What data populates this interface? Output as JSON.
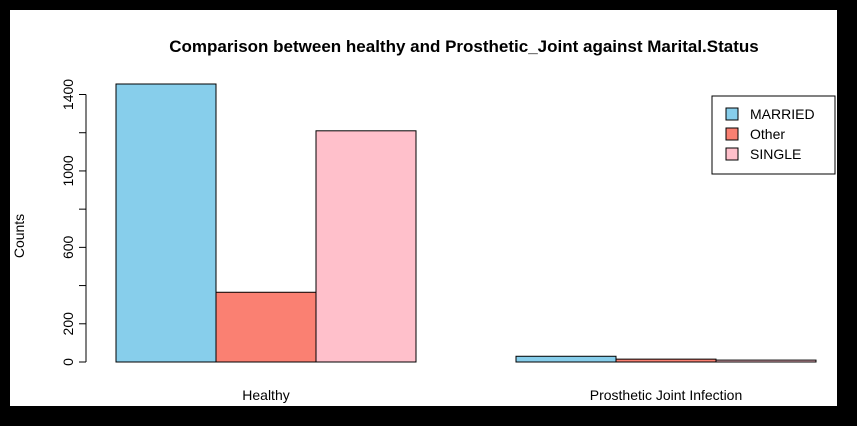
{
  "chart_data": {
    "type": "bar",
    "title": "Comparison between healthy and Prosthetic_Joint against Marital.Status",
    "xlabel": "",
    "ylabel": "Counts",
    "categories": [
      "Healthy",
      "Prosthetic Joint Infection"
    ],
    "series": [
      {
        "name": "MARRIED",
        "color": "#87CEEB",
        "values": [
          1455,
          30
        ]
      },
      {
        "name": "Other",
        "color": "#FA8072",
        "values": [
          365,
          15
        ]
      },
      {
        "name": "SINGLE",
        "color": "#FFC0CB",
        "values": [
          1210,
          10
        ]
      }
    ],
    "y_ticks": [
      0,
      200,
      600,
      1000,
      1400
    ],
    "ylim": [
      0,
      1455
    ],
    "legend_position": "top-right",
    "grid": false
  }
}
